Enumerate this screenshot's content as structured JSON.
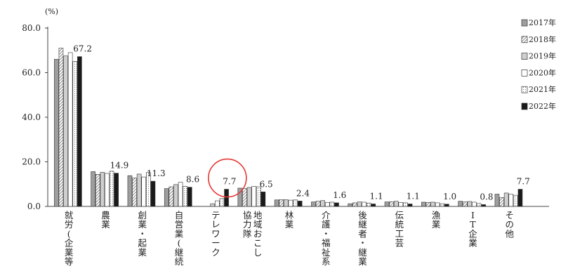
{
  "chart_data": {
    "type": "bar",
    "unit": "(%)",
    "ylim": [
      0,
      80
    ],
    "yticks": [
      "0.0",
      "20.0",
      "40.0",
      "60.0",
      "80.0"
    ],
    "grid": false,
    "legend_position": "right",
    "categories": [
      "就労(企業等",
      "農業",
      "創業・起業",
      "自営業(継続",
      "テレワーク",
      "地域おこし協力隊",
      "林業",
      "介護・福祉系",
      "後継者・継業",
      "伝統工芸",
      "漁業",
      "IT企業",
      "その他"
    ],
    "category_columns": [
      [
        "就労(企業等"
      ],
      [
        "農業"
      ],
      [
        "創業・起業"
      ],
      [
        "自営業(継続"
      ],
      [
        "テレワーク"
      ],
      [
        "地域おこし",
        "協力隊"
      ],
      [
        "林業"
      ],
      [
        "介護・福祉系"
      ],
      [
        "後継者・継業"
      ],
      [
        "伝統工芸"
      ],
      [
        "漁業"
      ],
      [
        "IT企業"
      ],
      [
        "その他"
      ]
    ],
    "series": [
      {
        "name": "2017年",
        "pattern": "gray",
        "values": [
          66.0,
          15.6,
          13.8,
          8.0,
          0.0,
          8.2,
          2.9,
          2.0,
          1.2,
          2.0,
          1.9,
          2.3,
          5.5
        ]
      },
      {
        "name": "2018年",
        "pattern": "diagonal",
        "values": [
          71.0,
          14.4,
          12.8,
          8.8,
          0.0,
          8.0,
          3.0,
          2.3,
          1.6,
          2.1,
          1.8,
          2.0,
          4.0
        ]
      },
      {
        "name": "2019年",
        "pattern": "lightgray",
        "values": [
          67.5,
          15.3,
          14.5,
          9.8,
          1.2,
          8.5,
          3.0,
          2.6,
          2.0,
          2.3,
          1.9,
          2.2,
          6.0
        ]
      },
      {
        "name": "2020年",
        "pattern": "white",
        "values": [
          69.0,
          14.8,
          13.2,
          10.8,
          2.5,
          9.0,
          2.8,
          1.8,
          1.9,
          1.8,
          1.6,
          1.9,
          5.5
        ]
      },
      {
        "name": "2021年",
        "pattern": "dotted",
        "values": [
          65.0,
          15.8,
          15.2,
          9.0,
          3.5,
          8.8,
          2.9,
          1.9,
          1.5,
          1.6,
          1.2,
          1.3,
          5.0
        ]
      },
      {
        "name": "2022年",
        "pattern": "black",
        "values": [
          67.2,
          14.9,
          11.3,
          8.6,
          7.7,
          6.5,
          2.4,
          1.6,
          1.1,
          1.1,
          1.0,
          0.8,
          7.7
        ]
      }
    ],
    "data_labels": [
      "67.2",
      "14.9",
      "11.3",
      "8.6",
      "7.7",
      "6.5",
      "2.4",
      "1.6",
      "1.1",
      "1.1",
      "1.0",
      "0.8",
      "7.7"
    ],
    "highlight_category": "テレワーク",
    "highlight_color": "#e53935"
  }
}
